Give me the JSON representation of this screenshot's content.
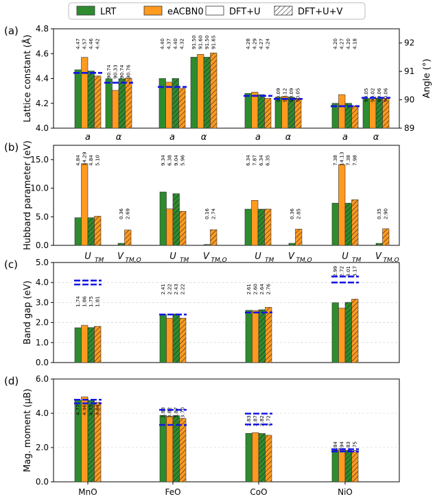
{
  "legend": [
    {
      "label": "LRT",
      "kind": "fill",
      "color": "#2e8b2e"
    },
    {
      "label": "eACBN0",
      "kind": "fill",
      "color": "#ff9a1f"
    },
    {
      "label": "DFT+U",
      "kind": "hollow",
      "color": "#ffffff"
    },
    {
      "label": "DFT+U+V",
      "kind": "hatch",
      "color": "#ffffff"
    }
  ],
  "colors": {
    "lrt": "#2e8b2e",
    "eacbn0": "#ff9a1f",
    "exp": "#1414e6",
    "grid": "#c8c8c8"
  },
  "materials": [
    "MnO",
    "FeO",
    "CoO",
    "NiO"
  ],
  "chart_data": [
    {
      "type": "bar",
      "panel_label": "(a)",
      "ylabel": "Lattice constant (Å)",
      "y2label": "Angle (°)",
      "ylim": [
        4.0,
        4.8
      ],
      "yticks": [
        "4.0",
        "4.2",
        "4.4",
        "4.6",
        "4.8"
      ],
      "y2lim": [
        89,
        92.5
      ],
      "y2ticks": [
        "89",
        "90",
        "91",
        "92"
      ],
      "categories": [
        "MnO",
        "FeO",
        "CoO",
        "NiO"
      ],
      "group_labels": [
        "a",
        "α"
      ],
      "series_order": [
        "LRT",
        "eACBN0",
        "DFT+U",
        "DFT+U+V"
      ],
      "lattice_a": [
        {
          "values": [
            4.47,
            4.57,
            4.46,
            4.42
          ],
          "labels": [
            "4.47",
            "4.57",
            "4.46",
            "4.42"
          ],
          "exp": [
            4.445,
            4.445
          ]
        },
        {
          "values": [
            4.4,
            4.37,
            4.4,
            4.32
          ],
          "labels": [
            "4.40",
            "4.37",
            "4.40",
            "4.32"
          ],
          "exp": [
            4.332,
            4.332
          ]
        },
        {
          "values": [
            4.28,
            4.29,
            4.27,
            4.24
          ],
          "labels": [
            "4.28",
            "4.29",
            "4.27",
            "4.24"
          ],
          "exp": [
            4.26,
            4.26
          ]
        },
        {
          "values": [
            4.2,
            4.27,
            4.2,
            4.18
          ],
          "labels": [
            "4.20",
            "4.27",
            "4.20",
            "4.18"
          ],
          "exp": [
            4.177,
            4.177
          ]
        }
      ],
      "angle_alpha": [
        {
          "values": [
            90.74,
            90.33,
            90.74,
            90.76
          ],
          "labels": [
            "90.74",
            "90.33",
            "90.74",
            "90.76"
          ],
          "exp": [
            90.6
          ]
        },
        {
          "values": [
            91.5,
            91.6,
            91.5,
            91.65
          ],
          "labels": [
            "91.50",
            "91.60",
            "91.50",
            "91.65"
          ],
          "exp": []
        },
        {
          "values": [
            90.09,
            90.12,
            90.09,
            90.05
          ],
          "labels": [
            "90.09",
            "90.12",
            "90.09",
            "90.05"
          ],
          "exp": [
            90.03
          ]
        },
        {
          "values": [
            90.05,
            90.02,
            90.06,
            90.06
          ],
          "labels": [
            "90.05",
            "90.02",
            "90.06",
            "90.06"
          ],
          "exp": [
            90.07
          ]
        }
      ]
    },
    {
      "type": "bar",
      "panel_label": "(b)",
      "ylabel": "Hubbard parameter (eV)",
      "ylim": [
        0,
        17.5
      ],
      "yticks": [
        "0.0",
        "5.0",
        "10.0",
        "15.0"
      ],
      "categories": [
        "MnO",
        "FeO",
        "CoO",
        "NiO"
      ],
      "group_labels": [
        "U_TM",
        "V_TM,O"
      ],
      "U_TM": [
        {
          "values": [
            4.84,
            14.29,
            4.84,
            5.1
          ],
          "labels": [
            "4.84",
            "14.29",
            "4.84",
            "5.10"
          ]
        },
        {
          "values": [
            9.34,
            6.38,
            9.04,
            5.96
          ],
          "labels": [
            "9.34",
            "6.38",
            "9.04",
            "5.96"
          ]
        },
        {
          "values": [
            6.34,
            7.87,
            6.34,
            6.35
          ],
          "labels": [
            "6.34",
            "7.87",
            "6.34",
            "6.35"
          ]
        },
        {
          "values": [
            7.38,
            14.13,
            7.38,
            7.98
          ],
          "labels": [
            "7.38",
            "14.13",
            "7.38",
            "7.98"
          ]
        }
      ],
      "V_TMO": [
        {
          "values": [
            0.36,
            2.69
          ],
          "labels": [
            "0.36",
            "2.69"
          ]
        },
        {
          "values": [
            0.16,
            2.74
          ],
          "labels": [
            "0.16",
            "2.74"
          ]
        },
        {
          "values": [
            0.36,
            2.85
          ],
          "labels": [
            "0.36",
            "2.85"
          ]
        },
        {
          "values": [
            0.35,
            2.9
          ],
          "labels": [
            "0.35",
            "2.90"
          ]
        }
      ]
    },
    {
      "type": "bar",
      "panel_label": "(c)",
      "ylabel": "Band gap (eV)",
      "ylim": [
        0,
        5.0
      ],
      "yticks": [
        "0.0",
        "1.0",
        "2.0",
        "3.0",
        "4.0",
        "5.0"
      ],
      "categories": [
        "MnO",
        "FeO",
        "CoO",
        "NiO"
      ],
      "series_order": [
        "LRT",
        "eACBN0",
        "DFT+U",
        "DFT+U+V"
      ],
      "values": [
        {
          "values": [
            1.74,
            1.86,
            1.75,
            1.81
          ],
          "labels": [
            "1.74",
            "1.86",
            "1.75",
            "1.81"
          ],
          "exp": [
            4.1,
            3.9
          ]
        },
        {
          "values": [
            2.41,
            2.22,
            2.43,
            2.22
          ],
          "labels": [
            "2.41",
            "2.22",
            "2.43",
            "2.22"
          ],
          "exp": [
            2.4
          ]
        },
        {
          "values": [
            2.61,
            2.6,
            2.64,
            2.76
          ],
          "labels": [
            "2.61",
            "2.60",
            "2.64",
            "2.76"
          ],
          "exp": [
            2.5
          ]
        },
        {
          "values": [
            2.99,
            2.72,
            3.01,
            3.17
          ],
          "labels": [
            "2.99",
            "2.72",
            "3.01",
            "3.17"
          ],
          "exp": [
            4.3,
            4.0
          ]
        }
      ]
    },
    {
      "type": "bar",
      "panel_label": "(d)",
      "ylabel": "Mag. moment (μB)",
      "ylim": [
        0,
        6.0
      ],
      "yticks": [
        "0.0",
        "2.0",
        "4.0",
        "6.0"
      ],
      "categories": [
        "MnO",
        "FeO",
        "CoO",
        "NiO"
      ],
      "series_order": [
        "LRT",
        "eACBN0",
        "DFT+U",
        "DFT+U+V"
      ],
      "values": [
        {
          "values": [
            4.77,
            4.96,
            4.75,
            4.64
          ],
          "labels": [
            "4.77",
            "4.96",
            "4.75",
            "4.64"
          ],
          "exp": [
            4.79,
            4.58
          ]
        },
        {
          "values": [
            3.88,
            3.82,
            3.87,
            3.7
          ],
          "labels": [
            "3.88",
            "3.82",
            "3.87",
            "3.70"
          ],
          "exp": [
            4.2,
            3.32
          ]
        },
        {
          "values": [
            2.83,
            2.87,
            2.82,
            2.72
          ],
          "labels": [
            "2.83",
            "2.87",
            "2.82",
            "2.72"
          ],
          "exp": [
            3.98,
            3.35
          ]
        },
        {
          "values": [
            1.84,
            1.94,
            1.83,
            1.75
          ],
          "labels": [
            "1.84",
            "1.94",
            "1.83",
            "1.75"
          ],
          "exp": [
            1.9,
            1.77
          ]
        }
      ]
    }
  ]
}
